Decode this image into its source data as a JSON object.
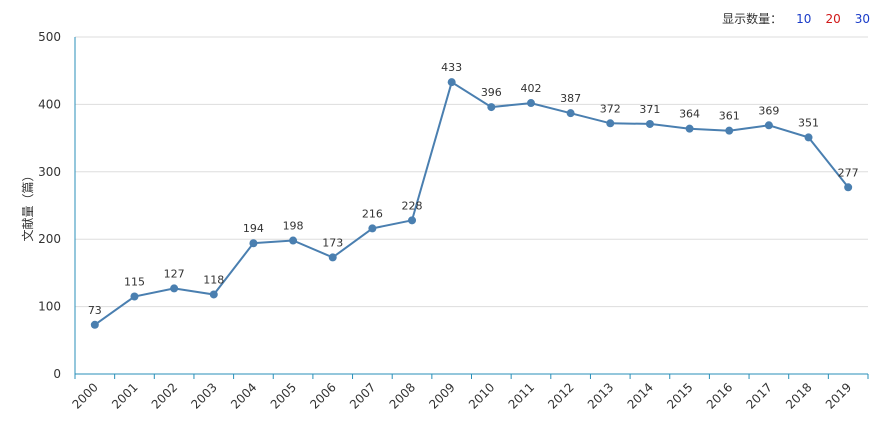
{
  "controls": {
    "label": "显示数量：",
    "options": [
      {
        "label": "10",
        "color": "#1a3cc8"
      },
      {
        "label": "20",
        "color": "#d01818"
      },
      {
        "label": "30",
        "color": "#1a3cc8"
      }
    ]
  },
  "chart_data": {
    "type": "line",
    "title": "",
    "xlabel": "",
    "ylabel": "文献量（篇）",
    "categories": [
      "2000",
      "2001",
      "2002",
      "2003",
      "2004",
      "2005",
      "2006",
      "2007",
      "2008",
      "2009",
      "2010",
      "2011",
      "2012",
      "2013",
      "2014",
      "2015",
      "2016",
      "2017",
      "2018",
      "2019"
    ],
    "series": [
      {
        "values": [
          73,
          115,
          127,
          118,
          194,
          198,
          173,
          216,
          228,
          433,
          396,
          402,
          387,
          372,
          371,
          364,
          361,
          369,
          351,
          277
        ]
      }
    ],
    "ylim": [
      0,
      500
    ],
    "yticks": [
      0,
      100,
      200,
      300,
      400,
      500
    ],
    "grid": true,
    "line_color": "#4a7fb0",
    "axis_color": "#2a8fb8"
  }
}
